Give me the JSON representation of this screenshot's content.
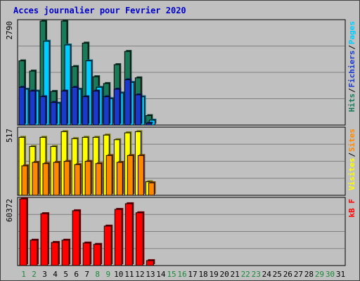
{
  "title": "Acces journalier pour Fevrier 2020",
  "colors": {
    "title": "#0000cc",
    "hits": "#1a7a5a",
    "files": "#00ccff",
    "pages": "#1a3acc",
    "visits": "#ffff00",
    "sites": "#ff8800",
    "kbytes": "#ff0000",
    "weekend_label": "#1a8a3a",
    "weekday_label": "#000000",
    "panel_bg": "#c0c0c0",
    "gridline": "#808080"
  },
  "legends": {
    "top": [
      "Pages",
      "/",
      "Fichiers",
      "/",
      "Hits"
    ],
    "middle": [
      "Sites",
      "/",
      "Visites"
    ],
    "bottom": [
      "kB F"
    ]
  },
  "chart_data": [
    {
      "type": "bar",
      "panel": "hits-files-pages",
      "ymax_label": "2790",
      "ylim": [
        0,
        2790
      ],
      "categories": [
        "1",
        "2",
        "3",
        "4",
        "5",
        "6",
        "7",
        "8",
        "9",
        "10",
        "11",
        "12",
        "13"
      ],
      "series": [
        {
          "name": "Hits",
          "values": [
            1700,
            1430,
            2790,
            890,
            2800,
            1550,
            2170,
            1280,
            1100,
            1600,
            1950,
            1250,
            250
          ]
        },
        {
          "name": "Fichiers",
          "values": [
            950,
            900,
            2220,
            580,
            2120,
            950,
            1700,
            1000,
            700,
            850,
            1130,
            750,
            130
          ]
        },
        {
          "name": "Pages",
          "values": [
            1000,
            900,
            750,
            600,
            900,
            1000,
            750,
            900,
            750,
            950,
            1200,
            800,
            50
          ]
        }
      ]
    },
    {
      "type": "bar",
      "panel": "visits-sites",
      "ymax_label": "517",
      "ylim": [
        0,
        517
      ],
      "categories": [
        "1",
        "2",
        "3",
        "4",
        "5",
        "6",
        "7",
        "8",
        "9",
        "10",
        "11",
        "12",
        "13"
      ],
      "series": [
        {
          "name": "Visites",
          "values": [
            440,
            370,
            440,
            370,
            483,
            430,
            440,
            440,
            457,
            422,
            474,
            483,
            103
          ]
        },
        {
          "name": "Sites",
          "values": [
            224,
            250,
            241,
            250,
            258,
            233,
            258,
            241,
            302,
            250,
            302,
            302,
            95
          ]
        }
      ]
    },
    {
      "type": "bar",
      "panel": "kbytes",
      "ymax_label": "60372",
      "ylim": [
        0,
        60372
      ],
      "categories": [
        "1",
        "2",
        "3",
        "4",
        "5",
        "6",
        "7",
        "8",
        "9",
        "10",
        "11",
        "12",
        "13"
      ],
      "series": [
        {
          "name": "kB F",
          "values": [
            60372,
            22500,
            46000,
            20500,
            22500,
            48600,
            20000,
            18800,
            35000,
            49800,
            54800,
            46800,
            4400
          ]
        }
      ]
    }
  ],
  "x_axis": {
    "days": [
      "1",
      "2",
      "3",
      "4",
      "5",
      "6",
      "7",
      "8",
      "9",
      "10",
      "11",
      "12",
      "13",
      "14",
      "15",
      "16",
      "17",
      "18",
      "19",
      "20",
      "21",
      "22",
      "23",
      "24",
      "25",
      "26",
      "27",
      "28",
      "29",
      "30",
      "31"
    ],
    "weekend_days": [
      "1",
      "2",
      "8",
      "9",
      "15",
      "16",
      "22",
      "23",
      "29",
      "30"
    ]
  }
}
